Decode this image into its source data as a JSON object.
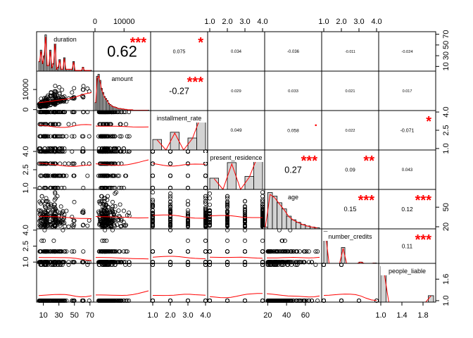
{
  "chart_data": {
    "type": "scatter",
    "title": "",
    "variables": [
      "duration",
      "amount",
      "installment_rate",
      "present_residence",
      "age",
      "number_credits",
      "people_liable"
    ],
    "ranges": {
      "duration": [
        4,
        72
      ],
      "amount": [
        250,
        18424
      ],
      "installment_rate": [
        1,
        4
      ],
      "present_residence": [
        1,
        4
      ],
      "age": [
        19,
        75
      ],
      "number_credits": [
        1,
        4
      ],
      "people_liable": [
        1,
        2
      ]
    },
    "correlations": [
      {
        "row": "duration",
        "col": "amount",
        "r": "0.62",
        "stars": "***"
      },
      {
        "row": "duration",
        "col": "installment_rate",
        "r": "0.075",
        "stars": "*"
      },
      {
        "row": "duration",
        "col": "present_residence",
        "r": "0.034",
        "stars": ""
      },
      {
        "row": "duration",
        "col": "age",
        "r": "-0.036",
        "stars": ""
      },
      {
        "row": "duration",
        "col": "number_credits",
        "r": "-0.011",
        "stars": ""
      },
      {
        "row": "duration",
        "col": "people_liable",
        "r": "-0.024",
        "stars": ""
      },
      {
        "row": "amount",
        "col": "installment_rate",
        "r": "-0.27",
        "stars": "***"
      },
      {
        "row": "amount",
        "col": "present_residence",
        "r": "0.029",
        "stars": ""
      },
      {
        "row": "amount",
        "col": "age",
        "r": "0.033",
        "stars": ""
      },
      {
        "row": "amount",
        "col": "number_credits",
        "r": "0.021",
        "stars": ""
      },
      {
        "row": "amount",
        "col": "people_liable",
        "r": "0.017",
        "stars": ""
      },
      {
        "row": "installment_rate",
        "col": "present_residence",
        "r": "0.049",
        "stars": ""
      },
      {
        "row": "installment_rate",
        "col": "age",
        "r": "0.058",
        "stars": "."
      },
      {
        "row": "installment_rate",
        "col": "number_credits",
        "r": "0.022",
        "stars": ""
      },
      {
        "row": "installment_rate",
        "col": "people_liable",
        "r": "-0.071",
        "stars": "*"
      },
      {
        "row": "present_residence",
        "col": "age",
        "r": "0.27",
        "stars": "***"
      },
      {
        "row": "present_residence",
        "col": "number_credits",
        "r": "0.09",
        "stars": "**"
      },
      {
        "row": "present_residence",
        "col": "people_liable",
        "r": "0.043",
        "stars": ""
      },
      {
        "row": "age",
        "col": "number_credits",
        "r": "0.15",
        "stars": "***"
      },
      {
        "row": "age",
        "col": "people_liable",
        "r": "0.12",
        "stars": "***"
      },
      {
        "row": "number_credits",
        "col": "people_liable",
        "r": "0.11",
        "stars": "***"
      }
    ],
    "histograms": {
      "duration": {
        "breaks": [
          4,
          6,
          8,
          10,
          12,
          14,
          16,
          18,
          20,
          22,
          24,
          26,
          28,
          30,
          32,
          34,
          36,
          38,
          40,
          42,
          44,
          46,
          48,
          50,
          52,
          54,
          56,
          58,
          60,
          62,
          64,
          66,
          68,
          70,
          72
        ],
        "rel": [
          0.25,
          0.55,
          0.2,
          0.4,
          0.95,
          0.15,
          0.15,
          0.55,
          0.1,
          0.2,
          0.75,
          0.05,
          0.1,
          0.3,
          0.05,
          0.05,
          0.35,
          0.05,
          0.05,
          0.05,
          0.05,
          0.05,
          0.25,
          0.02,
          0.02,
          0.02,
          0.02,
          0.02,
          0.1,
          0.02,
          0.02,
          0.02,
          0.02,
          0.02
        ]
      },
      "amount": {
        "breaks": [
          0,
          500,
          1000,
          1500,
          2000,
          2500,
          3000,
          3500,
          4000,
          4500,
          5000,
          5500,
          6000,
          6500,
          7000,
          7500,
          8000,
          8500,
          9000,
          9500,
          10000,
          10500,
          11000,
          11500,
          12000,
          12500,
          13000,
          13500,
          14000,
          14500,
          15000,
          15500,
          16000,
          16500,
          17000,
          17500,
          18000,
          18500
        ],
        "rel": [
          0.2,
          0.85,
          0.9,
          0.75,
          0.55,
          0.45,
          0.35,
          0.3,
          0.25,
          0.18,
          0.15,
          0.12,
          0.1,
          0.09,
          0.08,
          0.06,
          0.05,
          0.05,
          0.04,
          0.04,
          0.03,
          0.03,
          0.02,
          0.02,
          0.02,
          0.02,
          0.01,
          0.01,
          0.01,
          0.01,
          0.01,
          0.01,
          0.01,
          0.01,
          0.01,
          0.01,
          0.01
        ]
      },
      "installment_rate": {
        "breaks": [
          1,
          1.5,
          2,
          2.5,
          3,
          3.5,
          4
        ],
        "rel": [
          0.29,
          0.0,
          0.49,
          0.0,
          0.33,
          1.0
        ]
      },
      "present_residence": {
        "breaks": [
          1,
          1.5,
          2,
          2.5,
          3,
          3.5,
          4
        ],
        "rel": [
          0.31,
          0.0,
          0.74,
          0.0,
          0.36,
          1.0
        ]
      },
      "age": {
        "breaks": [
          15,
          20,
          25,
          30,
          35,
          40,
          45,
          50,
          55,
          60,
          65,
          70,
          75
        ],
        "rel": [
          0.05,
          1.0,
          0.9,
          0.72,
          0.55,
          0.35,
          0.25,
          0.18,
          0.12,
          0.08,
          0.05,
          0.03
        ]
      },
      "number_credits": {
        "breaks": [
          1,
          1.2,
          1.4,
          1.6,
          1.8,
          2,
          2.2,
          2.4,
          2.6,
          2.8,
          3,
          3.2,
          3.4,
          3.6,
          3.8,
          4
        ],
        "rel": [
          1.0,
          0.0,
          0.0,
          0.0,
          0.0,
          0.5,
          0.0,
          0.0,
          0.0,
          0.0,
          0.04,
          0.0,
          0.0,
          0.0,
          0.01
        ]
      },
      "people_liable": {
        "breaks": [
          1,
          1.1,
          1.2,
          1.3,
          1.4,
          1.5,
          1.6,
          1.7,
          1.8,
          1.9,
          2
        ],
        "rel": [
          1.0,
          0.0,
          0.0,
          0.0,
          0.0,
          0.0,
          0.0,
          0.0,
          0.0,
          0.18
        ]
      }
    },
    "axis_ticks": {
      "bottom": {
        "duration": [
          "10",
          "30",
          "50",
          "70"
        ],
        "installment_rate": [
          "1.0",
          "2.0",
          "3.0",
          "4.0"
        ],
        "age": [
          "20",
          "40",
          "60"
        ],
        "people_liable": [
          "1.0",
          "1.4",
          "1.8"
        ]
      },
      "top": {
        "amount": [
          "0",
          "10000"
        ],
        "present_residence": [
          "1.0",
          "2.0",
          "3.0",
          "4.0"
        ],
        "number_credits": [
          "1.0",
          "2.0",
          "3.0",
          "4.0"
        ]
      },
      "left": {
        "amount": [
          "0",
          "10000"
        ],
        "present_residence": [
          "1.0",
          "2.5",
          "4.0"
        ],
        "number_credits": [
          "1.0",
          "2.5",
          "4.0"
        ]
      },
      "right": {
        "duration": [
          "10",
          "30",
          "50",
          "70"
        ],
        "installment_rate": [
          "1.0",
          "2.5",
          "4.0"
        ],
        "age": [
          "20",
          "50"
        ],
        "people_liable": [
          "1.0",
          "1.6"
        ]
      }
    },
    "colors": {
      "points": "#000000",
      "smooth": "#ff0000",
      "hist": "#d3d3d3",
      "stars": "#ff0000"
    }
  }
}
